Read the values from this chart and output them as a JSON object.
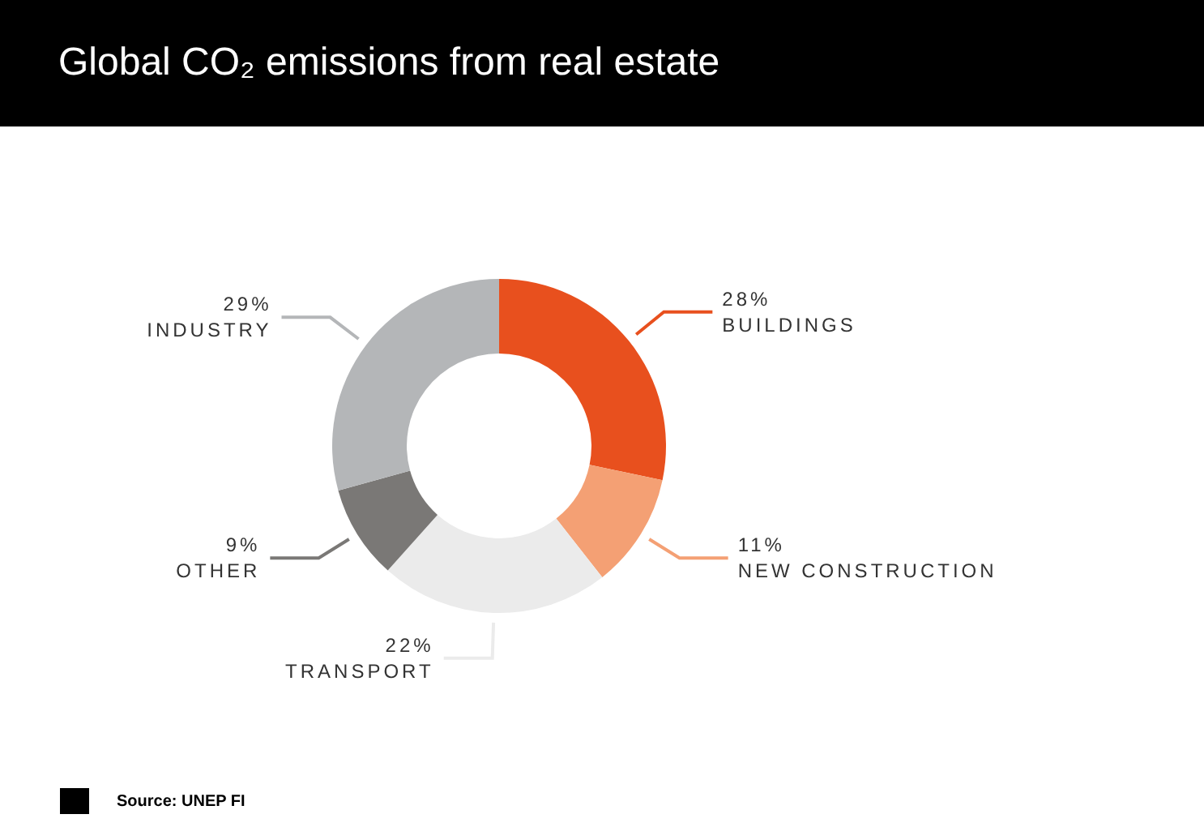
{
  "chart_data": {
    "type": "donut",
    "title": "Global CO₂ emissions from real estate",
    "categories": [
      "BUILDINGS",
      "NEW CONSTRUCTION",
      "TRANSPORT",
      "OTHER",
      "INDUSTRY"
    ],
    "values": [
      28,
      11,
      22,
      9,
      29
    ],
    "colors": [
      "#e8501e",
      "#f4a074",
      "#ebebeb",
      "#7a7876",
      "#b4b6b8"
    ],
    "value_labels": [
      "28%",
      "11%",
      "22%",
      "9%",
      "29%"
    ],
    "legend": false,
    "annotations": [
      "Source: UNEP FI"
    ]
  }
}
